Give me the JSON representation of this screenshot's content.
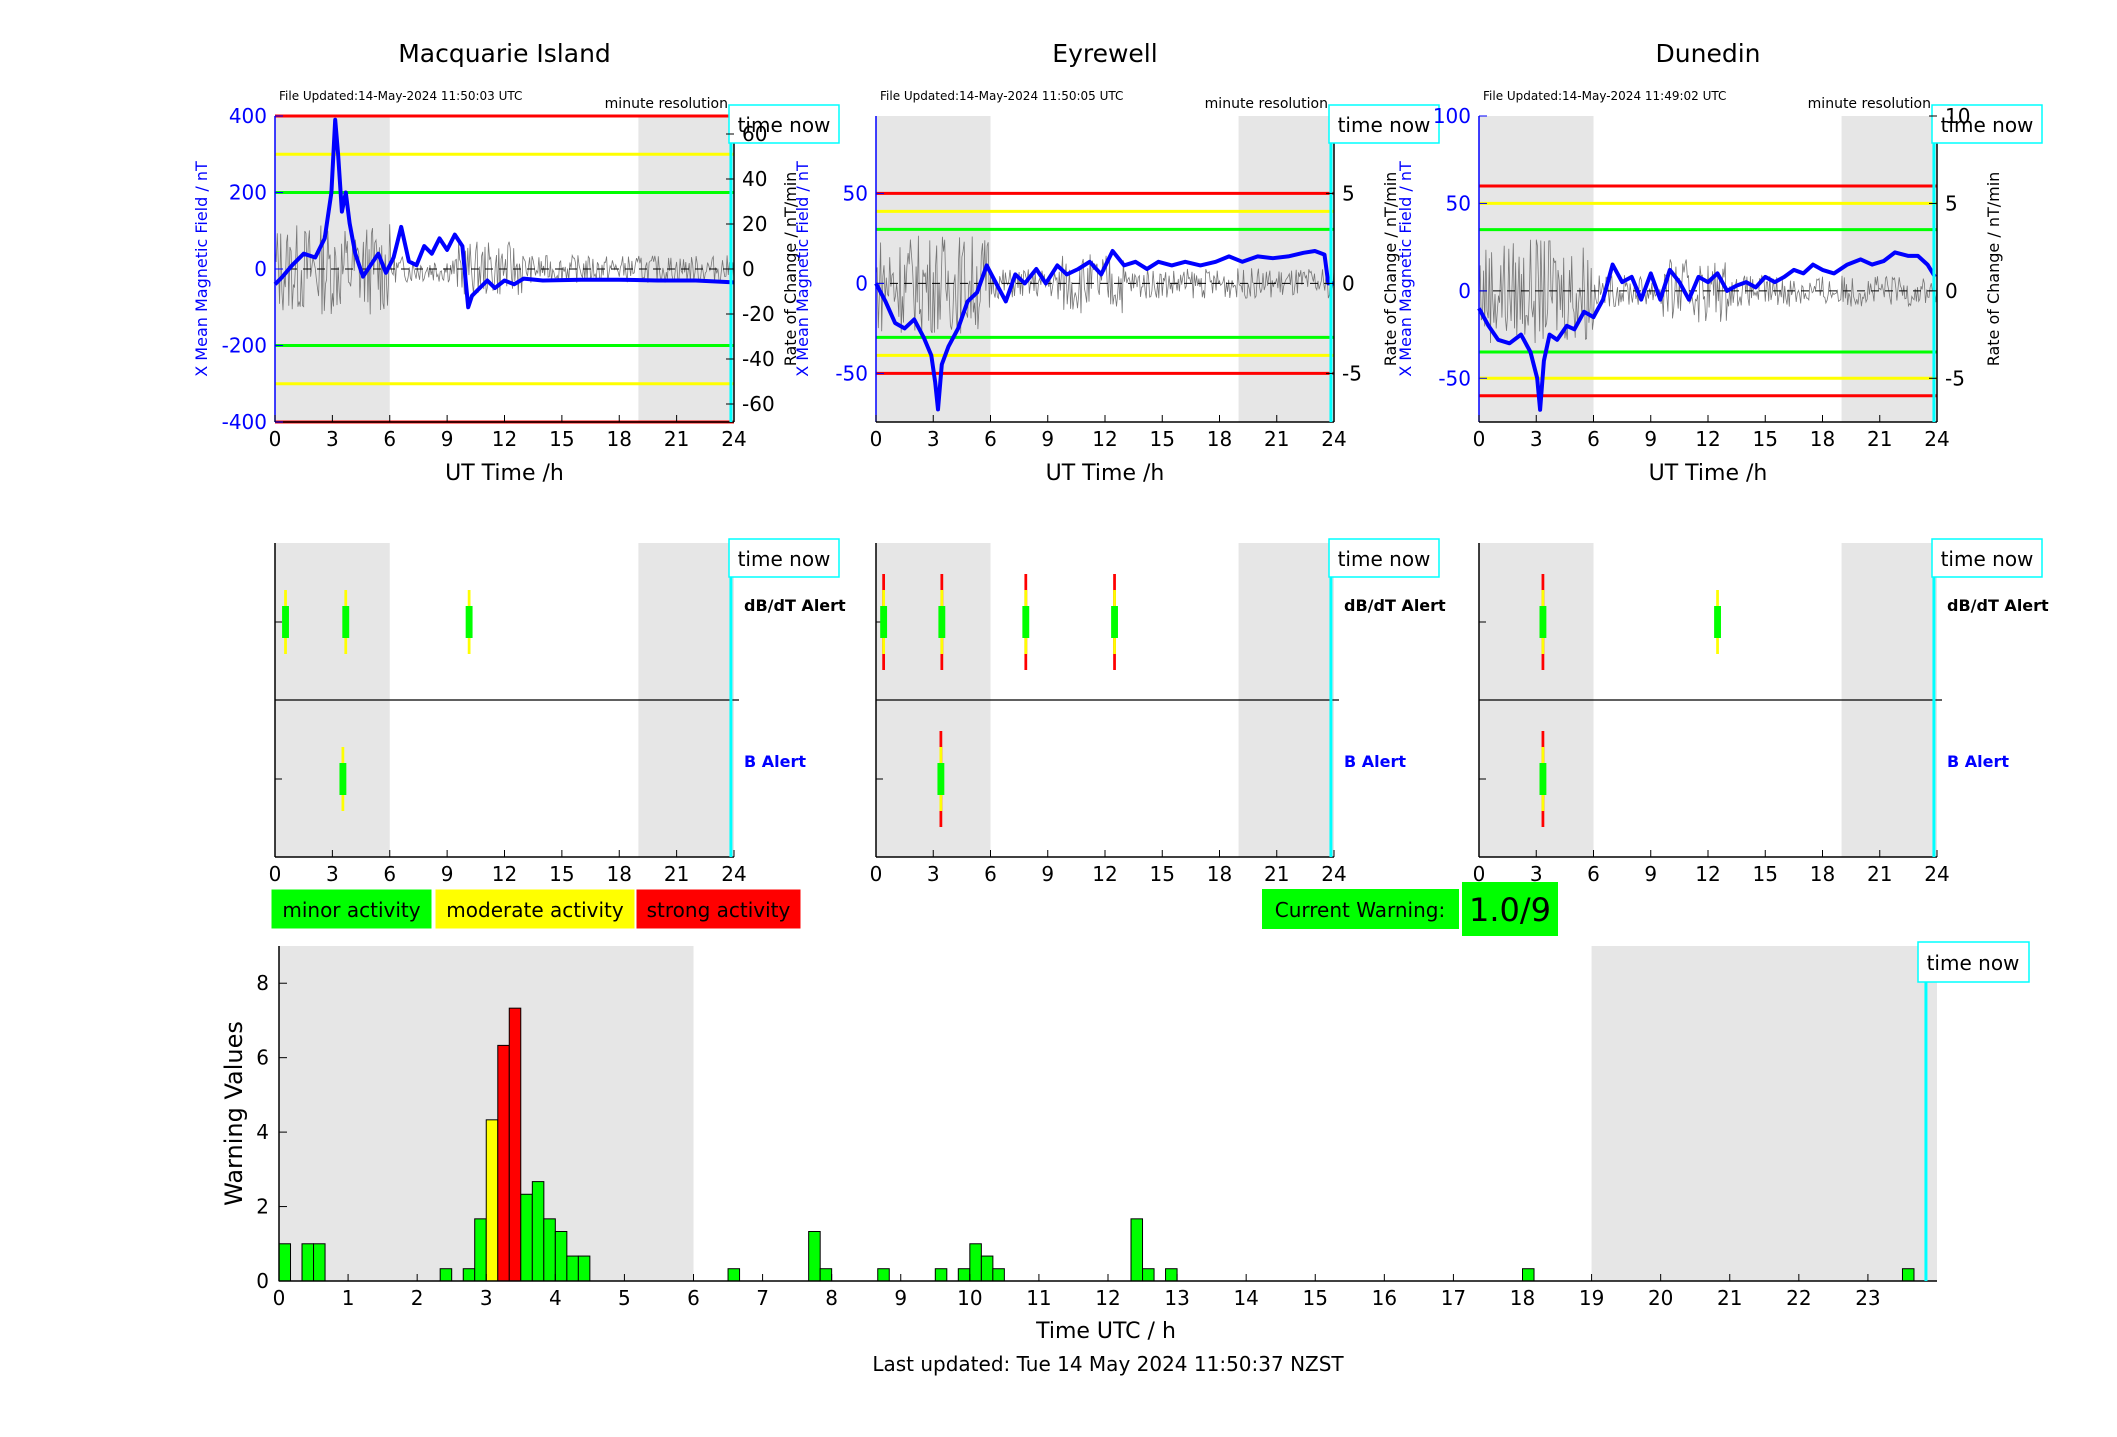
{
  "figure": {
    "footer": "Last updated: Tue 14 May 2024 11:50:37 NZST",
    "time_now_label": "time now",
    "time_now_hour": 23.84,
    "colors": {
      "minor": "#00ff00",
      "moderate": "#ffff00",
      "strong": "#ff0000",
      "trace": "#0000ff",
      "time_now": "#00ffff",
      "shade": "#e6e6e6"
    },
    "shaded_hours": [
      [
        0,
        6
      ],
      [
        19,
        24
      ]
    ]
  },
  "stations": [
    {
      "title": "Macquarie Island",
      "file_updated": "File Updated:14-May-2024 11:50:03 UTC",
      "resolution": "minute resolution",
      "xlabel": "UT Time /h",
      "ylabel_left": "X Mean Magnetic Field / nT",
      "ylabel_right": "Rate of Change / nT/min",
      "left_ticks": [
        "400",
        "200",
        "0",
        "-200",
        "-400"
      ],
      "right_ticks": [
        "60",
        "40",
        "20",
        "0",
        "-20",
        "-40",
        "-60"
      ],
      "x_ticks": [
        "0",
        "3",
        "6",
        "9",
        "12",
        "15",
        "18",
        "21",
        "24"
      ],
      "ylim_left": [
        -400,
        400
      ],
      "ylim_right": [
        -68,
        68
      ],
      "thresholds": {
        "minor": 200,
        "moderate": 300,
        "strong": 400
      },
      "trace": [
        [
          0,
          -40
        ],
        [
          0.4,
          -20
        ],
        [
          0.9,
          10
        ],
        [
          1.5,
          40
        ],
        [
          2.1,
          30
        ],
        [
          2.6,
          80
        ],
        [
          2.95,
          200
        ],
        [
          3.15,
          390
        ],
        [
          3.3,
          300
        ],
        [
          3.5,
          150
        ],
        [
          3.7,
          200
        ],
        [
          3.9,
          120
        ],
        [
          4.2,
          40
        ],
        [
          4.6,
          -20
        ],
        [
          5.0,
          10
        ],
        [
          5.4,
          40
        ],
        [
          5.8,
          -10
        ],
        [
          6.2,
          30
        ],
        [
          6.6,
          110
        ],
        [
          7.0,
          20
        ],
        [
          7.4,
          10
        ],
        [
          7.8,
          60
        ],
        [
          8.2,
          40
        ],
        [
          8.6,
          80
        ],
        [
          9.0,
          50
        ],
        [
          9.4,
          90
        ],
        [
          9.8,
          60
        ],
        [
          10.1,
          -100
        ],
        [
          10.3,
          -70
        ],
        [
          10.7,
          -50
        ],
        [
          11.1,
          -30
        ],
        [
          11.5,
          -50
        ],
        [
          12.0,
          -30
        ],
        [
          12.5,
          -40
        ],
        [
          13.0,
          -25
        ],
        [
          14.0,
          -30
        ],
        [
          16.0,
          -28
        ],
        [
          18.0,
          -28
        ],
        [
          20.0,
          -30
        ],
        [
          22.0,
          -30
        ],
        [
          24.0,
          -35
        ]
      ],
      "dbdt_alerts": [
        [
          0.55,
          "moderate",
          1
        ],
        [
          3.7,
          "moderate",
          1
        ],
        [
          10.15,
          "moderate",
          1
        ]
      ],
      "b_alerts": [
        [
          3.55,
          "moderate",
          1
        ]
      ]
    },
    {
      "title": "Eyrewell",
      "file_updated": "File Updated:14-May-2024 11:50:05 UTC",
      "resolution": "minute resolution",
      "xlabel": "UT Time /h",
      "ylabel_left": "X Mean Magnetic Field / nT",
      "ylabel_right": "Rate of Change / nT/min",
      "left_ticks": [
        "50",
        "0",
        "-50"
      ],
      "right_ticks": [
        "5",
        "0",
        "-5"
      ],
      "x_ticks": [
        "0",
        "3",
        "6",
        "9",
        "12",
        "15",
        "18",
        "21",
        "24"
      ],
      "ylim_left": [
        -77,
        93
      ],
      "ylim_right": [
        -7.7,
        9.3
      ],
      "thresholds": {
        "minor": 30,
        "moderate": 40,
        "strong": 50
      },
      "trace": [
        [
          0,
          0
        ],
        [
          0.5,
          -10
        ],
        [
          1.0,
          -22
        ],
        [
          1.5,
          -25
        ],
        [
          2.0,
          -20
        ],
        [
          2.5,
          -30
        ],
        [
          2.9,
          -40
        ],
        [
          3.1,
          -55
        ],
        [
          3.25,
          -70
        ],
        [
          3.45,
          -45
        ],
        [
          3.8,
          -35
        ],
        [
          4.3,
          -25
        ],
        [
          4.8,
          -10
        ],
        [
          5.3,
          -5
        ],
        [
          5.8,
          10
        ],
        [
          6.3,
          0
        ],
        [
          6.8,
          -10
        ],
        [
          7.3,
          5
        ],
        [
          7.8,
          0
        ],
        [
          8.4,
          8
        ],
        [
          8.9,
          0
        ],
        [
          9.5,
          10
        ],
        [
          10.0,
          5
        ],
        [
          10.6,
          8
        ],
        [
          11.2,
          12
        ],
        [
          11.8,
          5
        ],
        [
          12.4,
          18
        ],
        [
          13.0,
          10
        ],
        [
          13.6,
          12
        ],
        [
          14.2,
          8
        ],
        [
          14.8,
          12
        ],
        [
          15.5,
          10
        ],
        [
          16.2,
          12
        ],
        [
          17.0,
          10
        ],
        [
          17.8,
          12
        ],
        [
          18.5,
          15
        ],
        [
          19.2,
          12
        ],
        [
          20.0,
          15
        ],
        [
          20.8,
          14
        ],
        [
          21.6,
          15
        ],
        [
          22.4,
          17
        ],
        [
          23.0,
          18
        ],
        [
          23.5,
          16
        ],
        [
          23.7,
          0
        ],
        [
          24.0,
          0
        ]
      ],
      "dbdt_alerts": [
        [
          0.4,
          "strong",
          3
        ],
        [
          3.45,
          "strong",
          3
        ],
        [
          7.85,
          "strong",
          3
        ],
        [
          12.5,
          "strong",
          3
        ]
      ],
      "b_alerts": [
        [
          3.4,
          "strong",
          3
        ]
      ]
    },
    {
      "title": "Dunedin",
      "file_updated": "File Updated:14-May-2024 11:49:02 UTC",
      "resolution": "minute resolution",
      "xlabel": "UT Time /h",
      "ylabel_left": "X Mean Magnetic Field / nT",
      "ylabel_right": "Rate of Change / nT/min",
      "left_ticks": [
        "100",
        "50",
        "0",
        "-50"
      ],
      "right_ticks": [
        "10",
        "5",
        "0",
        "-5"
      ],
      "x_ticks": [
        "0",
        "3",
        "6",
        "9",
        "12",
        "15",
        "18",
        "21",
        "24"
      ],
      "ylim_left": [
        -75,
        100
      ],
      "ylim_right": [
        -7.5,
        10
      ],
      "thresholds": {
        "minor": 35,
        "moderate": 50,
        "strong": 60
      },
      "trace": [
        [
          0,
          -10
        ],
        [
          0.5,
          -20
        ],
        [
          1.0,
          -28
        ],
        [
          1.6,
          -30
        ],
        [
          2.2,
          -25
        ],
        [
          2.7,
          -35
        ],
        [
          3.05,
          -50
        ],
        [
          3.2,
          -68
        ],
        [
          3.4,
          -40
        ],
        [
          3.7,
          -25
        ],
        [
          4.1,
          -28
        ],
        [
          4.6,
          -20
        ],
        [
          5.0,
          -22
        ],
        [
          5.5,
          -12
        ],
        [
          6.0,
          -15
        ],
        [
          6.5,
          -5
        ],
        [
          7.0,
          15
        ],
        [
          7.5,
          5
        ],
        [
          8.0,
          8
        ],
        [
          8.5,
          -5
        ],
        [
          9.0,
          10
        ],
        [
          9.5,
          -5
        ],
        [
          10.0,
          12
        ],
        [
          10.5,
          5
        ],
        [
          11.0,
          -5
        ],
        [
          11.5,
          8
        ],
        [
          12.0,
          5
        ],
        [
          12.5,
          10
        ],
        [
          13.0,
          0
        ],
        [
          13.5,
          3
        ],
        [
          14.0,
          5
        ],
        [
          14.5,
          2
        ],
        [
          15.0,
          8
        ],
        [
          15.5,
          5
        ],
        [
          16.0,
          8
        ],
        [
          16.5,
          12
        ],
        [
          17.0,
          10
        ],
        [
          17.5,
          15
        ],
        [
          18.0,
          12
        ],
        [
          18.6,
          10
        ],
        [
          19.3,
          15
        ],
        [
          20.0,
          18
        ],
        [
          20.6,
          15
        ],
        [
          21.2,
          17
        ],
        [
          21.8,
          22
        ],
        [
          22.5,
          20
        ],
        [
          23.0,
          20
        ],
        [
          23.5,
          15
        ],
        [
          23.9,
          8
        ]
      ],
      "dbdt_alerts": [
        [
          3.35,
          "strong",
          3
        ],
        [
          12.5,
          "moderate",
          1
        ]
      ],
      "b_alerts": [
        [
          3.35,
          "strong",
          3
        ]
      ]
    }
  ],
  "alert_labels": {
    "dbdt": "dB/dT Alert",
    "b": "B Alert"
  },
  "legend": {
    "minor": "minor activity",
    "moderate": "moderate activity",
    "strong": "strong activity"
  },
  "warning": {
    "label": "Current Warning:",
    "value": "1.0/9"
  },
  "chart_data": {
    "type": "bar",
    "xlabel": "Time UTC / h",
    "ylabel": "Warning Values",
    "xlim": [
      0,
      24
    ],
    "ylim": [
      0,
      9
    ],
    "x_ticks": [
      "0",
      "1",
      "2",
      "3",
      "4",
      "5",
      "6",
      "7",
      "8",
      "9",
      "10",
      "11",
      "12",
      "13",
      "14",
      "15",
      "16",
      "17",
      "18",
      "19",
      "20",
      "21",
      "22",
      "23"
    ],
    "y_ticks": [
      "0",
      "2",
      "4",
      "6",
      "8"
    ],
    "bin_width_h": 0.1667,
    "bars": [
      {
        "x": 0.0,
        "value": 1.0,
        "level": "minor"
      },
      {
        "x": 0.333,
        "value": 1.0,
        "level": "minor"
      },
      {
        "x": 0.5,
        "value": 1.0,
        "level": "minor"
      },
      {
        "x": 2.333,
        "value": 0.33,
        "level": "minor"
      },
      {
        "x": 2.667,
        "value": 0.33,
        "level": "minor"
      },
      {
        "x": 2.833,
        "value": 1.67,
        "level": "minor"
      },
      {
        "x": 3.0,
        "value": 4.33,
        "level": "moderate"
      },
      {
        "x": 3.167,
        "value": 6.33,
        "level": "strong"
      },
      {
        "x": 3.333,
        "value": 7.33,
        "level": "strong"
      },
      {
        "x": 3.5,
        "value": 2.33,
        "level": "minor"
      },
      {
        "x": 3.667,
        "value": 2.67,
        "level": "minor"
      },
      {
        "x": 3.833,
        "value": 1.67,
        "level": "minor"
      },
      {
        "x": 4.0,
        "value": 1.33,
        "level": "minor"
      },
      {
        "x": 4.167,
        "value": 0.67,
        "level": "minor"
      },
      {
        "x": 4.333,
        "value": 0.67,
        "level": "minor"
      },
      {
        "x": 6.5,
        "value": 0.33,
        "level": "minor"
      },
      {
        "x": 7.667,
        "value": 1.33,
        "level": "minor"
      },
      {
        "x": 7.833,
        "value": 0.33,
        "level": "minor"
      },
      {
        "x": 8.667,
        "value": 0.33,
        "level": "minor"
      },
      {
        "x": 9.5,
        "value": 0.33,
        "level": "minor"
      },
      {
        "x": 9.833,
        "value": 0.33,
        "level": "minor"
      },
      {
        "x": 10.0,
        "value": 1.0,
        "level": "minor"
      },
      {
        "x": 10.167,
        "value": 0.67,
        "level": "minor"
      },
      {
        "x": 10.333,
        "value": 0.33,
        "level": "minor"
      },
      {
        "x": 12.333,
        "value": 1.67,
        "level": "minor"
      },
      {
        "x": 12.5,
        "value": 0.33,
        "level": "minor"
      },
      {
        "x": 12.833,
        "value": 0.33,
        "level": "minor"
      },
      {
        "x": 18.0,
        "value": 0.33,
        "level": "minor"
      },
      {
        "x": 23.5,
        "value": 0.33,
        "level": "minor"
      }
    ]
  }
}
